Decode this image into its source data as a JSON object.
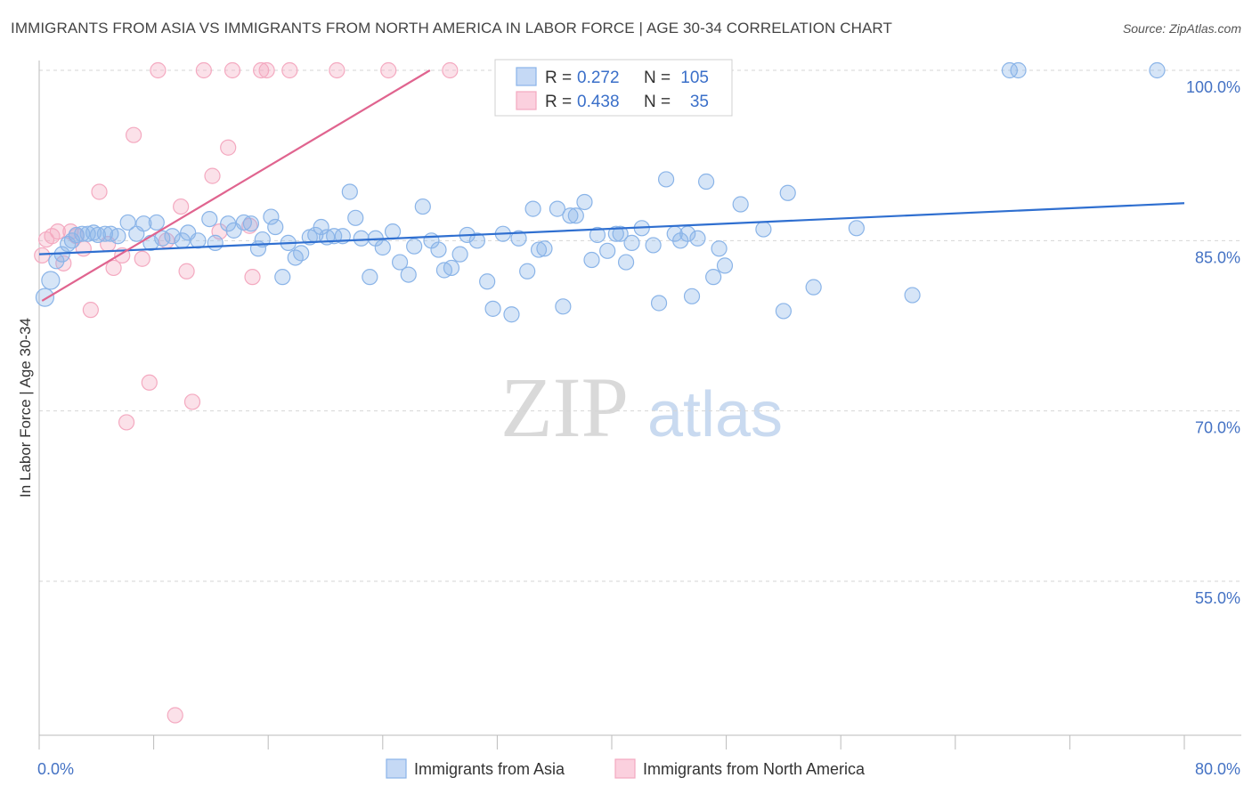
{
  "title": "IMMIGRANTS FROM ASIA VS IMMIGRANTS FROM NORTH AMERICA IN LABOR FORCE | AGE 30-34 CORRELATION CHART",
  "source": "Source: ZipAtlas.com",
  "watermark": {
    "zip": "ZIP",
    "atlas": "atlas"
  },
  "chart_data": {
    "type": "scatter",
    "title": "IMMIGRANTS FROM ASIA VS IMMIGRANTS FROM NORTH AMERICA IN LABOR FORCE | AGE 30-34 CORRELATION CHART",
    "xlabel": "",
    "ylabel": "In Labor Force | Age 30-34",
    "xlim": [
      0,
      80
    ],
    "ylim": [
      40,
      102
    ],
    "x_tick_labels": [
      "0.0%",
      "80.0%"
    ],
    "y_ticks": [
      {
        "value": 100,
        "label": "100.0%"
      },
      {
        "value": 85,
        "label": "85.0%"
      },
      {
        "value": 70,
        "label": "70.0%"
      },
      {
        "value": 55,
        "label": "55.0%"
      }
    ],
    "grid": true,
    "legend_position": "top-center",
    "series": [
      {
        "name": "Immigrants from Asia",
        "color": "#8ab4e8",
        "line_color": "#2f6fd0",
        "r": "0.272",
        "n": "105",
        "trend": {
          "x0": 0,
          "y0": 83.8,
          "x1": 80,
          "y1": 88.3
        },
        "points": [
          [
            0.4,
            80.0
          ],
          [
            0.8,
            81.5
          ],
          [
            1.2,
            83.2
          ],
          [
            1.6,
            83.8
          ],
          [
            2.0,
            84.7
          ],
          [
            2.3,
            85.0
          ],
          [
            2.6,
            85.5
          ],
          [
            3.0,
            85.6
          ],
          [
            3.4,
            85.6
          ],
          [
            3.8,
            85.7
          ],
          [
            4.1,
            85.5
          ],
          [
            4.6,
            85.6
          ],
          [
            5.0,
            85.6
          ],
          [
            5.5,
            85.4
          ],
          [
            6.2,
            86.6
          ],
          [
            6.8,
            85.6
          ],
          [
            7.3,
            86.5
          ],
          [
            7.8,
            84.8
          ],
          [
            8.2,
            86.6
          ],
          [
            8.6,
            85.2
          ],
          [
            9.3,
            85.4
          ],
          [
            10.0,
            85.0
          ],
          [
            10.4,
            85.7
          ],
          [
            11.1,
            85.0
          ],
          [
            11.9,
            86.9
          ],
          [
            12.3,
            84.8
          ],
          [
            13.2,
            86.5
          ],
          [
            13.6,
            85.9
          ],
          [
            14.3,
            86.6
          ],
          [
            14.8,
            86.5
          ],
          [
            15.3,
            84.3
          ],
          [
            15.6,
            85.1
          ],
          [
            16.2,
            87.1
          ],
          [
            16.5,
            86.2
          ],
          [
            17.0,
            81.8
          ],
          [
            17.4,
            84.8
          ],
          [
            17.9,
            83.5
          ],
          [
            18.3,
            83.9
          ],
          [
            18.9,
            85.3
          ],
          [
            19.3,
            85.5
          ],
          [
            19.7,
            86.2
          ],
          [
            20.1,
            85.3
          ],
          [
            20.6,
            85.4
          ],
          [
            21.2,
            85.4
          ],
          [
            21.7,
            89.3
          ],
          [
            22.1,
            87.0
          ],
          [
            22.5,
            85.2
          ],
          [
            23.1,
            81.8
          ],
          [
            23.5,
            85.2
          ],
          [
            24.0,
            84.4
          ],
          [
            24.7,
            85.8
          ],
          [
            25.2,
            83.1
          ],
          [
            25.8,
            82.0
          ],
          [
            26.2,
            84.5
          ],
          [
            26.8,
            88.0
          ],
          [
            27.4,
            85.0
          ],
          [
            27.9,
            84.2
          ],
          [
            28.3,
            82.4
          ],
          [
            28.8,
            82.6
          ],
          [
            29.4,
            83.8
          ],
          [
            29.9,
            85.5
          ],
          [
            30.6,
            85.0
          ],
          [
            31.3,
            81.4
          ],
          [
            31.7,
            79.0
          ],
          [
            32.4,
            85.6
          ],
          [
            33.0,
            78.5
          ],
          [
            33.5,
            85.2
          ],
          [
            34.1,
            82.3
          ],
          [
            34.5,
            87.8
          ],
          [
            34.9,
            84.2
          ],
          [
            35.3,
            84.3
          ],
          [
            36.2,
            87.8
          ],
          [
            36.6,
            79.2
          ],
          [
            37.1,
            87.2
          ],
          [
            37.5,
            87.2
          ],
          [
            38.1,
            88.4
          ],
          [
            38.6,
            83.3
          ],
          [
            39.0,
            85.5
          ],
          [
            39.7,
            84.1
          ],
          [
            40.3,
            85.6
          ],
          [
            40.6,
            85.6
          ],
          [
            41.0,
            83.1
          ],
          [
            41.4,
            84.8
          ],
          [
            42.1,
            86.1
          ],
          [
            42.9,
            84.6
          ],
          [
            43.3,
            79.5
          ],
          [
            43.8,
            90.4
          ],
          [
            44.4,
            85.6
          ],
          [
            44.8,
            85.0
          ],
          [
            45.3,
            85.6
          ],
          [
            45.6,
            80.1
          ],
          [
            46.0,
            85.2
          ],
          [
            46.6,
            90.2
          ],
          [
            47.1,
            81.8
          ],
          [
            47.5,
            84.3
          ],
          [
            47.9,
            82.8
          ],
          [
            49.0,
            88.2
          ],
          [
            50.6,
            86.0
          ],
          [
            52.0,
            78.8
          ],
          [
            52.3,
            89.2
          ],
          [
            54.1,
            80.9
          ],
          [
            57.1,
            86.1
          ],
          [
            61.0,
            80.2
          ],
          [
            67.8,
            100.0
          ],
          [
            68.4,
            100.0
          ],
          [
            78.1,
            100.0
          ]
        ]
      },
      {
        "name": "Immigrants from North America",
        "color": "#f4a9c0",
        "line_color": "#e0648f",
        "r": "0.438",
        "n": "35",
        "trend": {
          "x0": 0.2,
          "y0": 79.7,
          "x1": 27.3,
          "y1": 100.0
        },
        "points": [
          [
            0.2,
            83.7
          ],
          [
            0.5,
            85.1
          ],
          [
            0.9,
            85.4
          ],
          [
            1.3,
            85.8
          ],
          [
            1.7,
            83.0
          ],
          [
            2.2,
            85.8
          ],
          [
            2.6,
            85.4
          ],
          [
            3.1,
            84.3
          ],
          [
            3.6,
            78.9
          ],
          [
            4.2,
            89.3
          ],
          [
            4.8,
            84.7
          ],
          [
            5.2,
            82.6
          ],
          [
            5.8,
            83.7
          ],
          [
            6.1,
            69.0
          ],
          [
            6.6,
            94.3
          ],
          [
            7.2,
            83.4
          ],
          [
            7.7,
            72.5
          ],
          [
            8.3,
            100.0
          ],
          [
            8.9,
            85.0
          ],
          [
            9.5,
            43.2
          ],
          [
            9.9,
            88.0
          ],
          [
            10.3,
            82.3
          ],
          [
            10.7,
            70.8
          ],
          [
            11.5,
            100.0
          ],
          [
            12.1,
            90.7
          ],
          [
            12.6,
            85.8
          ],
          [
            13.2,
            93.2
          ],
          [
            13.5,
            100.0
          ],
          [
            14.7,
            86.3
          ],
          [
            14.9,
            81.8
          ],
          [
            15.5,
            100.0
          ],
          [
            15.9,
            100.0
          ],
          [
            17.5,
            100.0
          ],
          [
            20.8,
            100.0
          ],
          [
            24.4,
            100.0
          ],
          [
            28.7,
            100.0
          ]
        ]
      }
    ]
  }
}
